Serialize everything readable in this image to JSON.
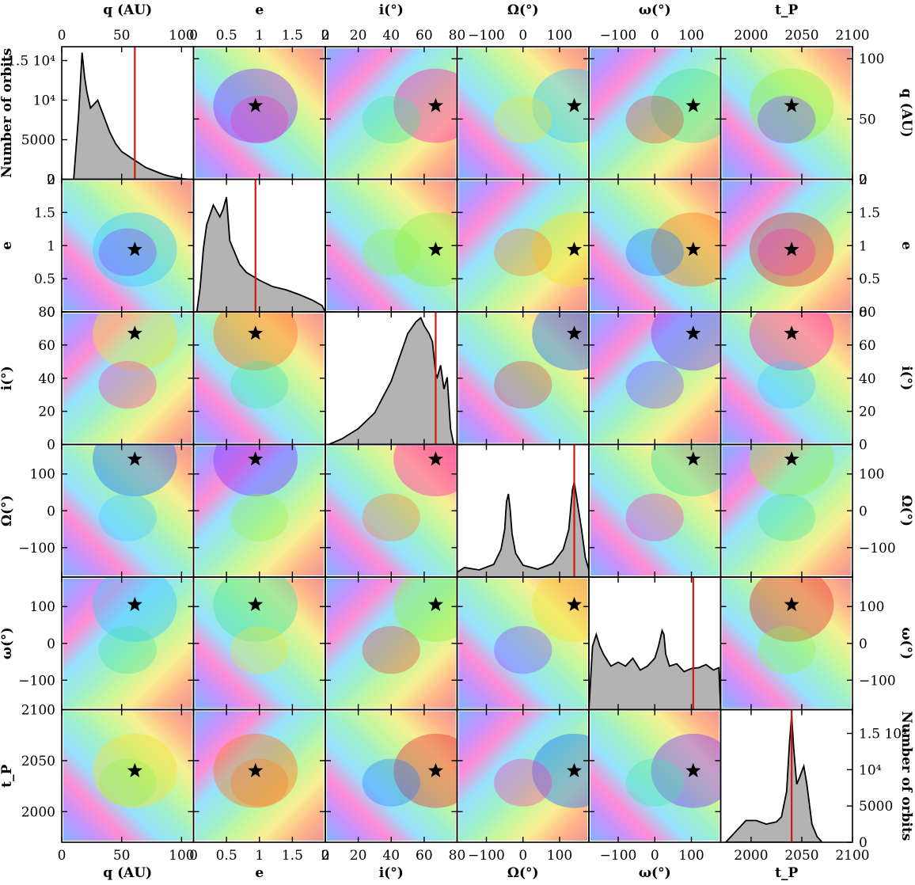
{
  "chart_data": {
    "type": "corner",
    "variables": [
      {
        "key": "q",
        "label": "q (AU)",
        "range": [
          0,
          110
        ],
        "ticks": [
          0,
          50,
          100
        ],
        "tick_labels": [
          "0",
          "50",
          "100"
        ],
        "best_fit": 61
      },
      {
        "key": "e",
        "label": "e",
        "range": [
          0,
          2
        ],
        "ticks": [
          0,
          0.5,
          1,
          1.5,
          2
        ],
        "tick_labels": [
          "0",
          "0.5",
          "1",
          "1.5",
          "2"
        ],
        "best_fit": 0.94
      },
      {
        "key": "i",
        "label": "i(°)",
        "range": [
          0,
          80
        ],
        "ticks": [
          0,
          20,
          40,
          60,
          80
        ],
        "tick_labels": [
          "0",
          "20",
          "40",
          "60",
          "80"
        ],
        "best_fit": 67
      },
      {
        "key": "Omega",
        "label": "Ω(°)",
        "range": [
          -180,
          180
        ],
        "ticks": [
          -100,
          0,
          100
        ],
        "tick_labels": [
          "−100",
          "0",
          "100"
        ],
        "best_fit": 140
      },
      {
        "key": "omega",
        "label": "ω(°)",
        "range": [
          -180,
          180
        ],
        "ticks": [
          -100,
          0,
          100
        ],
        "tick_labels": [
          "−100",
          "0",
          "100"
        ],
        "best_fit": 105
      },
      {
        "key": "tp",
        "label": "t_P",
        "range": [
          1970,
          2100
        ],
        "ticks": [
          2000,
          2050,
          2100
        ],
        "tick_labels": [
          "2000",
          "2050",
          "2100"
        ],
        "best_fit": 2040
      }
    ],
    "histogram_axes": {
      "left_label": "Number of orbits",
      "left_ticks": [
        {
          "value": 0,
          "label": "0"
        },
        {
          "value": 5000,
          "label": "5000"
        },
        {
          "value": 10000,
          "label": "10⁴"
        },
        {
          "value": 15000,
          "label": "1.5 10⁴"
        }
      ],
      "left_max": 16500,
      "right_label": "Number of orbits",
      "right_ticks": [
        {
          "value": 0,
          "label": "0"
        },
        {
          "value": 5000,
          "label": "5000"
        },
        {
          "value": 10000,
          "label": "10⁴"
        },
        {
          "value": 15000,
          "label": "1.5 10⁴"
        }
      ],
      "right_max": 18000
    },
    "histograms": {
      "q": {
        "x": [
          10,
          14,
          17,
          19,
          21,
          24,
          27,
          30,
          35,
          40,
          45,
          50,
          55,
          60,
          65,
          70,
          75,
          80,
          85,
          90,
          95,
          100,
          105
        ],
        "y": [
          0,
          8000,
          16000,
          13000,
          11000,
          9000,
          9500,
          10000,
          8000,
          6000,
          4500,
          3500,
          3000,
          2500,
          2000,
          1500,
          1200,
          900,
          600,
          400,
          250,
          100,
          0
        ]
      },
      "e": {
        "x": [
          0.05,
          0.1,
          0.15,
          0.2,
          0.3,
          0.4,
          0.45,
          0.5,
          0.55,
          0.6,
          0.7,
          0.8,
          1.0,
          1.2,
          1.4,
          1.6,
          1.8,
          1.95,
          2.0
        ],
        "y": [
          0,
          3000,
          8000,
          11000,
          13500,
          12000,
          13000,
          14500,
          9000,
          8000,
          6000,
          5000,
          4000,
          3200,
          2800,
          2200,
          1500,
          800,
          0
        ]
      },
      "i": {
        "x": [
          2,
          10,
          20,
          30,
          40,
          45,
          50,
          55,
          58,
          60,
          63,
          65,
          67,
          68,
          70,
          72,
          74,
          76,
          78
        ],
        "y": [
          0,
          700,
          2000,
          4000,
          8000,
          11000,
          14000,
          15500,
          16000,
          15000,
          14000,
          13000,
          9000,
          8500,
          10000,
          7000,
          8500,
          2000,
          0
        ]
      },
      "Omega": {
        "x": [
          -180,
          -160,
          -120,
          -80,
          -60,
          -50,
          -45,
          -40,
          -35,
          -30,
          -20,
          0,
          40,
          80,
          110,
          125,
          135,
          140,
          150,
          160,
          170,
          180
        ],
        "y": [
          600,
          1200,
          900,
          1600,
          3500,
          6000,
          9500,
          10500,
          8500,
          5500,
          3000,
          1500,
          1000,
          1700,
          3500,
          6000,
          11000,
          12000,
          9000,
          6000,
          2500,
          900
        ]
      },
      "omega": {
        "x": [
          -180,
          -170,
          -160,
          -150,
          -140,
          -120,
          -100,
          -80,
          -60,
          -40,
          -20,
          0,
          10,
          20,
          25,
          30,
          40,
          60,
          80,
          100,
          120,
          140,
          160,
          175,
          180
        ],
        "y": [
          0,
          8000,
          9500,
          8000,
          7000,
          5500,
          6000,
          5500,
          6500,
          5000,
          5500,
          6500,
          8000,
          10000,
          9500,
          7000,
          5500,
          5800,
          4800,
          5200,
          5300,
          5700,
          5000,
          5300,
          0
        ]
      },
      "tp": {
        "x": [
          1975,
          1985,
          1995,
          2005,
          2015,
          2025,
          2030,
          2035,
          2038,
          2040,
          2042,
          2045,
          2048,
          2052,
          2055,
          2060,
          2065,
          2070
        ],
        "y": [
          0,
          1500,
          3000,
          3000,
          2500,
          2800,
          3500,
          7000,
          14000,
          17500,
          13000,
          8000,
          9000,
          10500,
          8000,
          2500,
          800,
          0
        ]
      }
    },
    "axis_titles": {
      "top": [
        "q (AU)",
        "e",
        "i(°)",
        "Ω(°)",
        "ω(°)",
        "t_P"
      ],
      "bottom": [
        "q (AU)",
        "e",
        "i(°)",
        "Ω(°)",
        "ω(°)",
        "t_P"
      ],
      "left": [
        "Number of orbits",
        "e",
        "i(°)",
        "Ω(°)",
        "ω(°)",
        "t_P"
      ],
      "right": [
        "q (AU)",
        "e",
        "i(°)",
        "Ω(°)",
        "ω(°)",
        "Number of orbits"
      ]
    },
    "best_fit_marker": "star",
    "density_colors": [
      "#1f78ff",
      "#8a3cff",
      "#ff2fb3",
      "#41c9ff",
      "#4be2a6",
      "#98f04c",
      "#f1e33a",
      "#ff7a29",
      "#e43c3c"
    ],
    "histogram_fill": "#b3b3b3",
    "marker_line_color": "#d2160f"
  }
}
